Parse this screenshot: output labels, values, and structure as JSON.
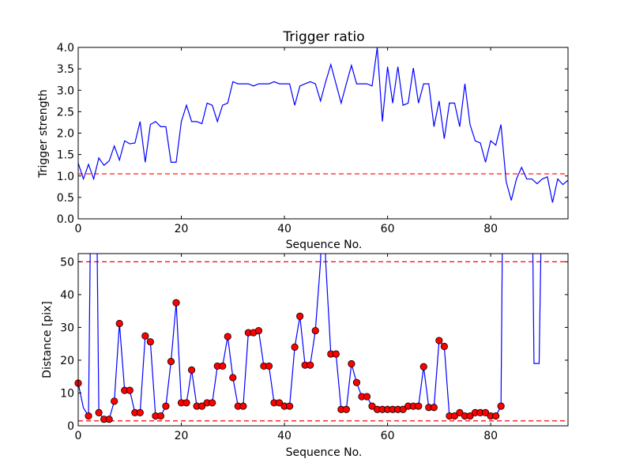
{
  "chart_data": [
    {
      "type": "line",
      "title": "Trigger ratio",
      "xlabel": "Sequence No.",
      "ylabel": "Trigger strength",
      "xlim": [
        0,
        95
      ],
      "ylim": [
        0,
        4.0
      ],
      "xticks": [
        "0",
        "20",
        "40",
        "60",
        "80"
      ],
      "yticks": [
        "0.0",
        "0.5",
        "1.0",
        "1.5",
        "2.0",
        "2.5",
        "3.0",
        "3.5",
        "4.0"
      ],
      "grid": false,
      "series": [
        {
          "color": "#0000ff",
          "x": [
            0,
            1,
            2,
            3,
            4,
            5,
            6,
            7,
            8,
            9,
            10,
            11,
            12,
            13,
            14,
            15,
            16,
            17,
            18,
            19,
            20,
            21,
            22,
            23,
            24,
            25,
            26,
            27,
            28,
            29,
            30,
            31,
            32,
            33,
            34,
            35,
            36,
            37,
            38,
            39,
            40,
            41,
            42,
            43,
            44,
            45,
            46,
            47,
            48,
            49,
            50,
            51,
            52,
            53,
            54,
            55,
            56,
            57,
            58,
            59,
            60,
            61,
            62,
            63,
            64,
            65,
            66,
            67,
            68,
            69,
            70,
            71,
            72,
            73,
            74,
            75,
            76,
            77,
            78,
            79,
            80,
            81,
            82,
            83,
            84,
            85,
            86,
            87,
            88,
            89,
            90,
            91,
            92,
            93,
            94,
            95
          ],
          "values": [
            1.3,
            0.93,
            1.27,
            0.93,
            1.42,
            1.25,
            1.35,
            1.7,
            1.37,
            1.82,
            1.75,
            1.77,
            2.27,
            1.32,
            2.2,
            2.27,
            2.15,
            2.15,
            1.32,
            1.32,
            2.27,
            2.65,
            2.27,
            2.27,
            2.22,
            2.7,
            2.65,
            2.27,
            2.65,
            2.7,
            3.2,
            3.15,
            3.15,
            3.15,
            3.1,
            3.15,
            3.15,
            3.15,
            3.2,
            3.15,
            3.15,
            3.15,
            2.65,
            3.1,
            3.15,
            3.2,
            3.15,
            2.75,
            3.2,
            3.6,
            3.15,
            2.7,
            3.15,
            3.58,
            3.15,
            3.15,
            3.15,
            3.1,
            4.0,
            2.27,
            3.55,
            2.7,
            3.55,
            2.65,
            2.7,
            3.52,
            2.7,
            3.15,
            3.15,
            2.15,
            2.75,
            1.87,
            2.7,
            2.7,
            2.15,
            3.15,
            2.2,
            1.82,
            1.77,
            1.32,
            1.82,
            1.72,
            2.2,
            0.87,
            0.43,
            0.93,
            1.2,
            0.93,
            0.93,
            0.82,
            0.93,
            0.98,
            0.38,
            0.93,
            0.8,
            0.9
          ]
        }
      ],
      "reference_lines": [
        {
          "y": 1.05,
          "color": "#ff0000",
          "style": "dashed"
        }
      ]
    },
    {
      "type": "line",
      "title": "",
      "xlabel": "Sequence No.",
      "ylabel": "Distance [pix]",
      "xlim": [
        0,
        95
      ],
      "ylim": [
        0,
        52.5
      ],
      "xticks": [
        "0",
        "20",
        "40",
        "60",
        "80"
      ],
      "yticks": [
        "0",
        "10",
        "20",
        "30",
        "40",
        "50"
      ],
      "grid": false,
      "series": [
        {
          "color": "#0000ff",
          "marker_color": "#ff0000",
          "x": [
            0,
            1,
            2,
            3,
            4,
            5,
            6,
            7,
            8,
            9,
            10,
            11,
            12,
            13,
            14,
            15,
            16,
            17,
            18,
            19,
            20,
            21,
            22,
            23,
            24,
            25,
            26,
            27,
            28,
            29,
            30,
            31,
            32,
            33,
            34,
            35,
            36,
            37,
            38,
            39,
            40,
            41,
            42,
            43,
            44,
            45,
            46,
            47,
            48,
            49,
            50,
            51,
            52,
            53,
            54,
            55,
            56,
            57,
            58,
            59,
            60,
            61,
            62,
            63,
            64,
            65,
            66,
            67,
            68,
            69,
            70,
            71,
            72,
            73,
            74,
            75,
            76,
            77,
            78,
            79,
            80,
            81,
            82,
            83,
            84,
            85,
            86,
            87,
            88,
            89,
            90,
            91,
            92,
            93,
            94,
            95
          ],
          "values": [
            13,
            null,
            3,
            null,
            4,
            2,
            2,
            7.5,
            31.2,
            10.8,
            10.8,
            4,
            4,
            27.4,
            25.6,
            3,
            3,
            6,
            19.6,
            37.5,
            7,
            7,
            17,
            6,
            6,
            7,
            7,
            18.2,
            18.2,
            27.2,
            14.7,
            6,
            6,
            28.4,
            28.4,
            29,
            18.2,
            18.2,
            7,
            7,
            6,
            6,
            24,
            33.4,
            18.5,
            18.5,
            29,
            null,
            null,
            21.9,
            21.9,
            5,
            5,
            18.9,
            13.2,
            8.9,
            8.9,
            6,
            5,
            5,
            5,
            5,
            5,
            5,
            6,
            6,
            6,
            18,
            5.6,
            5.6,
            26,
            24.2,
            3,
            3,
            4,
            3,
            3,
            4,
            4,
            4,
            3,
            3,
            6,
            null,
            null,
            null,
            null,
            null,
            null,
            null,
            null,
            null,
            null,
            null,
            null,
            null
          ],
          "markers": [
            true,
            false,
            true,
            false,
            true,
            true,
            true,
            true,
            true,
            true,
            true,
            true,
            true,
            true,
            true,
            true,
            true,
            true,
            true,
            true,
            true,
            true,
            true,
            true,
            true,
            true,
            true,
            true,
            true,
            true,
            true,
            true,
            true,
            true,
            true,
            true,
            true,
            true,
            true,
            true,
            true,
            true,
            true,
            true,
            true,
            true,
            true,
            false,
            false,
            true,
            true,
            true,
            true,
            true,
            true,
            true,
            true,
            true,
            true,
            true,
            true,
            true,
            true,
            true,
            true,
            true,
            true,
            true,
            true,
            true,
            true,
            true,
            true,
            true,
            true,
            true,
            true,
            true,
            true,
            true,
            true,
            true,
            true,
            false,
            false,
            false,
            false,
            false,
            false,
            false,
            false,
            false,
            false,
            false,
            false,
            false
          ],
          "line_path": [
            [
              0,
              13
            ],
            [
              1,
              5.5
            ],
            [
              2,
              3
            ],
            [
              2.5,
              80
            ],
            [
              3,
              80
            ],
            [
              3.5,
              80
            ],
            [
              4,
              4
            ],
            [
              5,
              2
            ],
            [
              6,
              2
            ],
            [
              7,
              7.5
            ],
            [
              8,
              31.2
            ],
            [
              9,
              10.8
            ],
            [
              10,
              10.8
            ],
            [
              11,
              4
            ],
            [
              12,
              4
            ],
            [
              13,
              27.4
            ],
            [
              14,
              25.6
            ],
            [
              15,
              3
            ],
            [
              16,
              3
            ],
            [
              17,
              6
            ],
            [
              18,
              19.6
            ],
            [
              19,
              37.5
            ],
            [
              20,
              7
            ],
            [
              21,
              7
            ],
            [
              22,
              17
            ],
            [
              23,
              6
            ],
            [
              24,
              6
            ],
            [
              25,
              7
            ],
            [
              26,
              7
            ],
            [
              27,
              18.2
            ],
            [
              28,
              18.2
            ],
            [
              29,
              27.2
            ],
            [
              30,
              14.7
            ],
            [
              31,
              6
            ],
            [
              32,
              6
            ],
            [
              33,
              28.4
            ],
            [
              34,
              28.4
            ],
            [
              35,
              29
            ],
            [
              36,
              18.2
            ],
            [
              37,
              18.2
            ],
            [
              38,
              7
            ],
            [
              39,
              7
            ],
            [
              40,
              6
            ],
            [
              41,
              6
            ],
            [
              42,
              24
            ],
            [
              43,
              33.4
            ],
            [
              44,
              18.5
            ],
            [
              45,
              18.5
            ],
            [
              46,
              29
            ],
            [
              47,
              50
            ],
            [
              47.5,
              80
            ],
            [
              48,
              50
            ],
            [
              49,
              21.9
            ],
            [
              50,
              21.9
            ],
            [
              51,
              5
            ],
            [
              52,
              5
            ],
            [
              53,
              18.9
            ],
            [
              54,
              13.2
            ],
            [
              55,
              8.9
            ],
            [
              56,
              8.9
            ],
            [
              57,
              6
            ],
            [
              58,
              5
            ],
            [
              59,
              5
            ],
            [
              60,
              5
            ],
            [
              61,
              5
            ],
            [
              62,
              5
            ],
            [
              63,
              5
            ],
            [
              64,
              6
            ],
            [
              65,
              6
            ],
            [
              66,
              6
            ],
            [
              67,
              18
            ],
            [
              68,
              5.6
            ],
            [
              69,
              5.6
            ],
            [
              70,
              26
            ],
            [
              71,
              24.2
            ],
            [
              72,
              3
            ],
            [
              73,
              3
            ],
            [
              74,
              4
            ],
            [
              75,
              3
            ],
            [
              76,
              3
            ],
            [
              77,
              4
            ],
            [
              78,
              4
            ],
            [
              79,
              4
            ],
            [
              80,
              3
            ],
            [
              81,
              3
            ],
            [
              82,
              6
            ],
            [
              82.4,
              80
            ],
            [
              88,
              80
            ],
            [
              88.4,
              19
            ],
            [
              89.4,
              19
            ],
            [
              90,
              80
            ],
            [
              95,
              80
            ]
          ]
        }
      ],
      "reference_lines": [
        {
          "y": 50,
          "color": "#ff0000",
          "style": "dashed"
        },
        {
          "y": 1.5,
          "color": "#ff0000",
          "style": "dashed"
        }
      ]
    }
  ]
}
